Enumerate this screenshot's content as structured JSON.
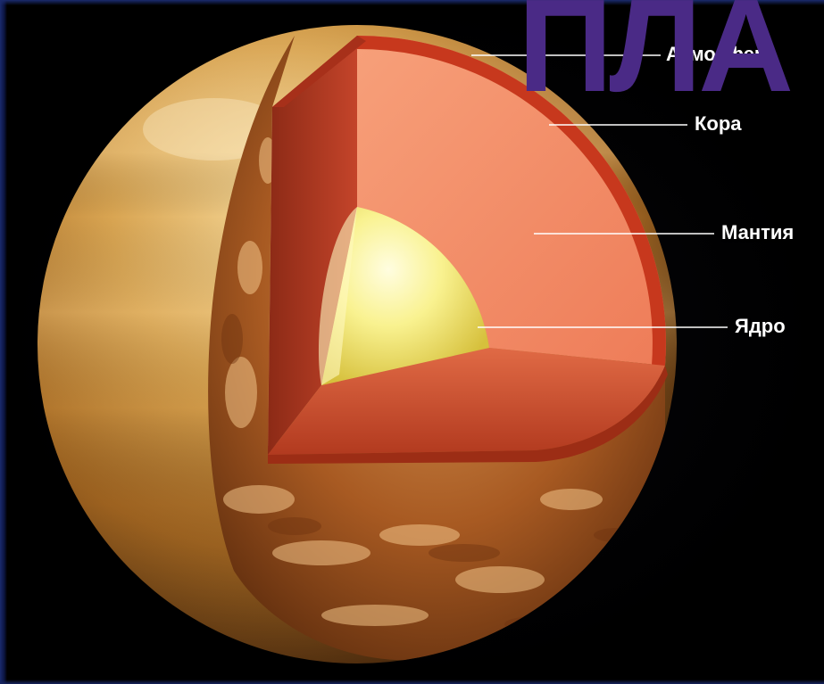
{
  "labels": {
    "atmosphere": "Атмосфера",
    "crust": "Кора",
    "mantle": "Мантия",
    "core": "Ядро"
  },
  "title_overlay": "ПЛА",
  "colors": {
    "title": "#4a2a86",
    "surface": "#c9933e",
    "mantle": "#f07a55",
    "crust": "#c7381d",
    "core": "#f7f08a",
    "label_line": "#ffffff"
  }
}
